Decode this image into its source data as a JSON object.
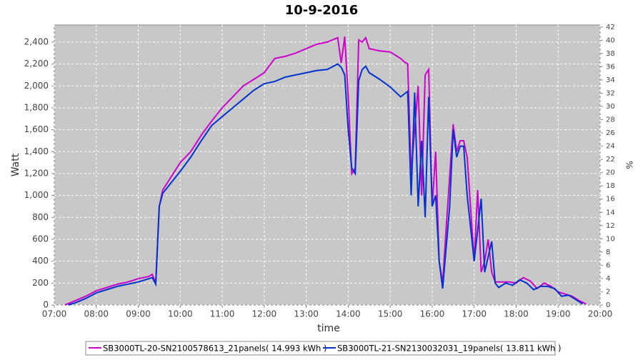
{
  "chart_data": {
    "type": "line",
    "title": "10-9-2016",
    "x_label": "time",
    "y_label": "Watt",
    "y2_label": "%",
    "xlim": [
      "07:00",
      "20:00"
    ],
    "xticks": [
      "07:00",
      "08:00",
      "09:00",
      "10:00",
      "11:00",
      "12:00",
      "13:00",
      "14:00",
      "15:00",
      "16:00",
      "17:00",
      "18:00",
      "19:00",
      "20:00"
    ],
    "ylim": [
      0,
      2556
    ],
    "yticks": [
      0,
      200,
      400,
      600,
      800,
      {
        "value": 1000,
        "label": "1,000"
      },
      {
        "value": 1200,
        "label": "1,200"
      },
      {
        "value": 1400,
        "label": "1,400"
      },
      {
        "value": 1600,
        "label": "1,600"
      },
      {
        "value": 1800,
        "label": "1,800"
      },
      {
        "value": 2000,
        "label": "2,000"
      },
      {
        "value": 2200,
        "label": "2,200"
      },
      {
        "value": 2400,
        "label": "2,400"
      }
    ],
    "y2lim": [
      0,
      42.3
    ],
    "y2ticks": [
      0,
      2,
      4,
      6,
      8,
      10,
      12,
      14,
      16,
      18,
      20,
      22,
      24,
      26,
      28,
      30,
      32,
      34,
      36,
      38,
      40,
      42
    ],
    "grid": true,
    "legend": "bottom",
    "series": [
      {
        "name": "SB3000TL-20-SN2100578613_21panels( 14.993 kWh )",
        "color": "#cc00cc",
        "x": [
          "07:15",
          "07:30",
          "07:45",
          "08:00",
          "08:15",
          "08:30",
          "08:45",
          "09:00",
          "09:15",
          "09:20",
          "09:25",
          "09:30",
          "09:35",
          "09:45",
          "10:00",
          "10:15",
          "10:30",
          "10:45",
          "11:00",
          "11:15",
          "11:30",
          "11:45",
          "12:00",
          "12:15",
          "12:30",
          "12:45",
          "13:00",
          "13:15",
          "13:30",
          "13:45",
          "13:50",
          "13:55",
          "14:00",
          "14:05",
          "14:10",
          "14:15",
          "14:20",
          "14:25",
          "14:30",
          "14:45",
          "15:00",
          "15:15",
          "15:20",
          "15:25",
          "15:30",
          "15:35",
          "15:40",
          "15:45",
          "15:50",
          "15:55",
          "16:00",
          "16:05",
          "16:10",
          "16:15",
          "16:20",
          "16:30",
          "16:35",
          "16:40",
          "16:45",
          "16:50",
          "17:00",
          "17:05",
          "17:10",
          "17:15",
          "17:20",
          "17:25",
          "17:30",
          "17:40",
          "17:50",
          "18:00",
          "18:10",
          "18:20",
          "18:30",
          "18:40",
          "18:50",
          "19:00",
          "19:10",
          "19:20",
          "19:30",
          "19:40"
        ],
        "values": [
          0,
          40,
          80,
          130,
          160,
          190,
          210,
          240,
          260,
          280,
          200,
          900,
          1050,
          1150,
          1300,
          1400,
          1550,
          1680,
          1800,
          1900,
          2000,
          2060,
          2120,
          2250,
          2270,
          2300,
          2340,
          2380,
          2400,
          2440,
          2210,
          2450,
          1900,
          1200,
          1250,
          2420,
          2400,
          2440,
          2340,
          2320,
          2310,
          2250,
          2220,
          2200,
          1200,
          1600,
          2000,
          1000,
          2100,
          2150,
          900,
          1400,
          400,
          200,
          700,
          1650,
          1400,
          1500,
          1500,
          1350,
          400,
          1050,
          300,
          400,
          600,
          300,
          210,
          210,
          210,
          200,
          250,
          220,
          150,
          200,
          170,
          120,
          100,
          80,
          40,
          10
        ]
      },
      {
        "name": "SB3000TL-21-SN2130032031_19panels( 13.811 kWh )",
        "color": "#0033cc",
        "x": [
          "07:20",
          "07:30",
          "07:45",
          "08:00",
          "08:15",
          "08:30",
          "08:45",
          "09:00",
          "09:15",
          "09:20",
          "09:25",
          "09:30",
          "09:35",
          "09:45",
          "10:00",
          "10:15",
          "10:30",
          "10:45",
          "11:00",
          "11:15",
          "11:30",
          "11:45",
          "12:00",
          "12:15",
          "12:30",
          "12:45",
          "13:00",
          "13:15",
          "13:30",
          "13:45",
          "13:50",
          "13:55",
          "14:00",
          "14:05",
          "14:10",
          "14:15",
          "14:20",
          "14:25",
          "14:30",
          "14:45",
          "15:00",
          "15:15",
          "15:25",
          "15:30",
          "15:35",
          "15:40",
          "15:45",
          "15:50",
          "15:55",
          "16:00",
          "16:05",
          "16:10",
          "16:15",
          "16:25",
          "16:30",
          "16:35",
          "16:40",
          "16:45",
          "16:50",
          "17:00",
          "17:10",
          "17:15",
          "17:25",
          "17:30",
          "17:35",
          "17:45",
          "17:55",
          "18:05",
          "18:15",
          "18:25",
          "18:35",
          "18:45",
          "18:55",
          "19:05",
          "19:15",
          "19:25",
          "19:35"
        ],
        "values": [
          0,
          20,
          60,
          110,
          140,
          170,
          190,
          210,
          240,
          250,
          190,
          900,
          1020,
          1100,
          1220,
          1350,
          1500,
          1640,
          1720,
          1800,
          1880,
          1960,
          2020,
          2040,
          2080,
          2100,
          2120,
          2140,
          2150,
          2200,
          2170,
          2100,
          1600,
          1250,
          1200,
          2050,
          2150,
          2180,
          2120,
          2060,
          1990,
          1900,
          1950,
          1000,
          1940,
          900,
          1500,
          800,
          1900,
          900,
          1000,
          400,
          150,
          900,
          1600,
          1350,
          1450,
          1450,
          1000,
          400,
          970,
          300,
          580,
          200,
          160,
          200,
          180,
          230,
          200,
          140,
          170,
          170,
          150,
          80,
          90,
          50,
          10
        ]
      }
    ]
  }
}
